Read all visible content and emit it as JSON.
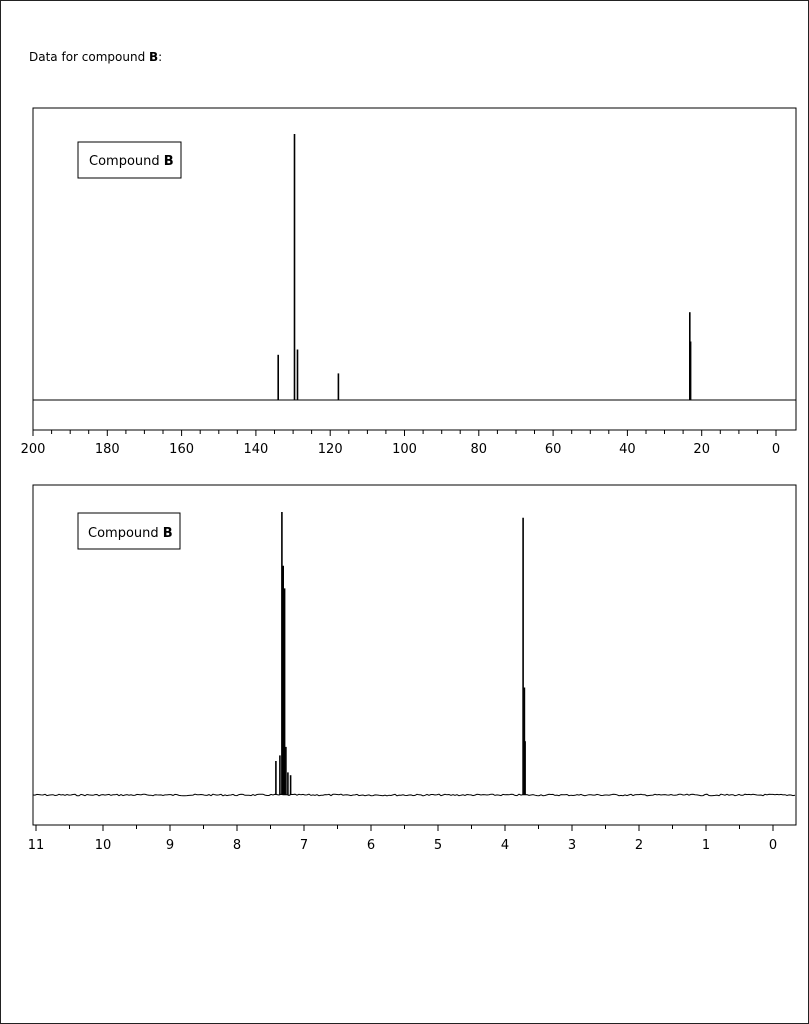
{
  "page": {
    "heading_prefix": "Data for compound ",
    "heading_bold": "B",
    "heading_suffix": ":"
  },
  "chart_data": [
    {
      "type": "line",
      "legend": {
        "prefix": "Compound ",
        "bold": "B",
        "placement": "top-left"
      },
      "xlim": [
        200,
        0
      ],
      "ticks": [
        200,
        180,
        160,
        140,
        120,
        100,
        80,
        60,
        40,
        20,
        0
      ],
      "tick_labels": [
        "200",
        "180",
        "160",
        "140",
        "120",
        "100",
        "80",
        "60",
        "40",
        "20",
        "0"
      ],
      "minor_step": 5,
      "intensity_max": 100,
      "peaks": [
        {
          "x": 134.0,
          "height": 17
        },
        {
          "x": 129.6,
          "height": 100
        },
        {
          "x": 128.8,
          "height": 19
        },
        {
          "x": 117.8,
          "height": 10
        },
        {
          "x": 23.2,
          "height": 33
        },
        {
          "x": 23.0,
          "height": 22
        }
      ],
      "grid": false
    },
    {
      "type": "line",
      "legend": {
        "prefix": "Compound ",
        "bold": "B",
        "placement": "top-left"
      },
      "xlim": [
        11,
        0
      ],
      "ticks": [
        11,
        10,
        9,
        8,
        7,
        6,
        5,
        4,
        3,
        2,
        1,
        0
      ],
      "tick_labels": [
        "11",
        "10",
        "9",
        "8",
        "7",
        "6",
        "5",
        "4",
        "3",
        "2",
        "1",
        "0"
      ],
      "minor_step": 0.5,
      "intensity_max": 100,
      "peaks": [
        {
          "x": 7.42,
          "height": 12
        },
        {
          "x": 7.36,
          "height": 14
        },
        {
          "x": 7.33,
          "height": 100
        },
        {
          "x": 7.31,
          "height": 81
        },
        {
          "x": 7.29,
          "height": 73
        },
        {
          "x": 7.27,
          "height": 17
        },
        {
          "x": 7.24,
          "height": 8
        },
        {
          "x": 7.2,
          "height": 7
        },
        {
          "x": 3.73,
          "height": 98
        },
        {
          "x": 3.71,
          "height": 38
        },
        {
          "x": 3.7,
          "height": 19
        }
      ],
      "grid": false
    }
  ]
}
